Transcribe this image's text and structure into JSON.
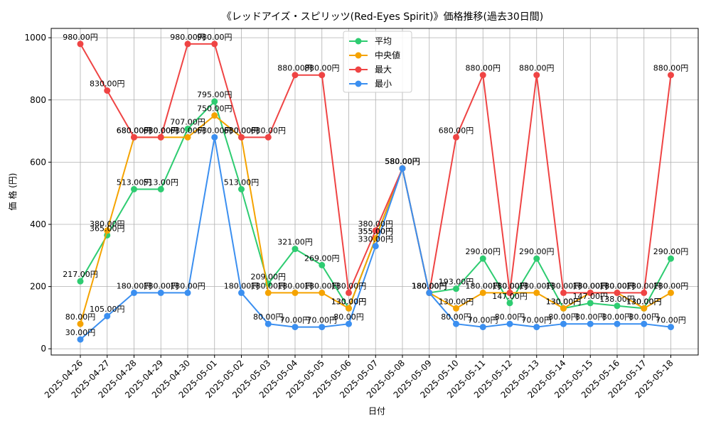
{
  "chart_data": {
    "type": "line",
    "title": "《レッドアイズ・スピリッツ(Red-Eyes Spirit)》価格推移(過去30日間)",
    "xlabel": "日付",
    "ylabel": "価 格 (円)",
    "ylim": [
      -20,
      1030
    ],
    "yticks": [
      0,
      200,
      400,
      600,
      800,
      1000
    ],
    "grid": true,
    "legend_position": "top-center",
    "value_suffix": "円",
    "categories": [
      "2025-04-26",
      "2025-04-27",
      "2025-04-28",
      "2025-04-29",
      "2025-04-30",
      "2025-05-01",
      "2025-05-02",
      "2025-05-03",
      "2025-05-04",
      "2025-05-05",
      "2025-05-06",
      "2025-05-07",
      "2025-05-08",
      "2025-05-09",
      "2025-05-10",
      "2025-05-11",
      "2025-05-12",
      "2025-05-13",
      "2025-05-14",
      "2025-05-15",
      "2025-05-16",
      "2025-05-17",
      "2025-05-18"
    ],
    "series": [
      {
        "name": "平均",
        "color": "#2ecc71",
        "values": [
          217,
          365,
          513,
          513,
          707,
          795,
          513,
          209,
          321,
          269,
          130,
          355,
          580,
          180,
          193,
          290,
          147,
          290,
          130,
          147,
          138,
          130,
          290
        ]
      },
      {
        "name": "中央値",
        "color": "#f5a300",
        "values": [
          80,
          380,
          680,
          680,
          680,
          750,
          680,
          180,
          180,
          180,
          130,
          355,
          580,
          180,
          130,
          180,
          180,
          180,
          130,
          180,
          180,
          130,
          180
        ]
      },
      {
        "name": "最大",
        "color": "#ef4444",
        "values": [
          980,
          830,
          680,
          680,
          980,
          980,
          680,
          680,
          880,
          880,
          180,
          380,
          580,
          180,
          680,
          880,
          180,
          880,
          180,
          180,
          180,
          180,
          880
        ]
      },
      {
        "name": "最小",
        "color": "#3b8ff0",
        "values": [
          30,
          105,
          180,
          180,
          180,
          680,
          180,
          80,
          70,
          70,
          80,
          330,
          580,
          180,
          80,
          70,
          80,
          70,
          80,
          80,
          80,
          80,
          70
        ]
      }
    ]
  }
}
